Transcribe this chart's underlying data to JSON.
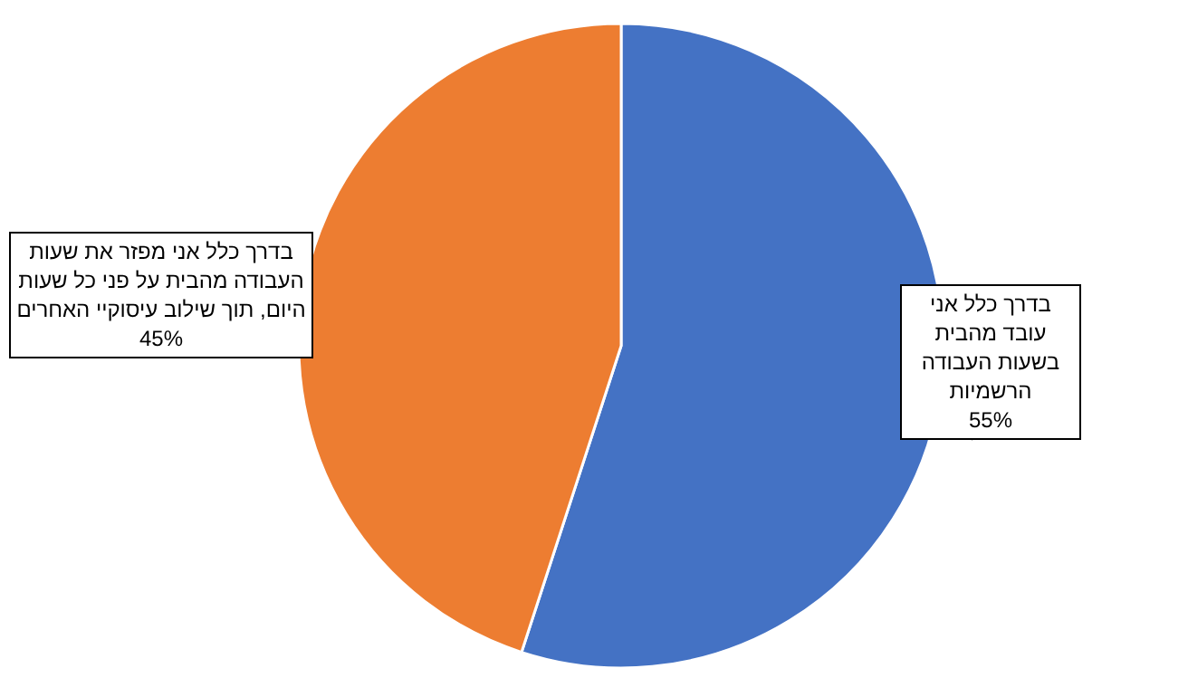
{
  "chart_data": {
    "type": "pie",
    "categories": [
      "בדרך כלל אני עובד מהבית בשעות העבודה הרשמיות",
      "בדרך כלל אני מפזר את שעות העבודה מהבית על פני כל שעות היום, תוך שילוב עיסוקיי האחרים"
    ],
    "values": [
      55,
      45
    ],
    "colors": [
      "#4472c4",
      "#ed7d31"
    ],
    "value_labels": [
      "55%",
      "45%"
    ]
  }
}
